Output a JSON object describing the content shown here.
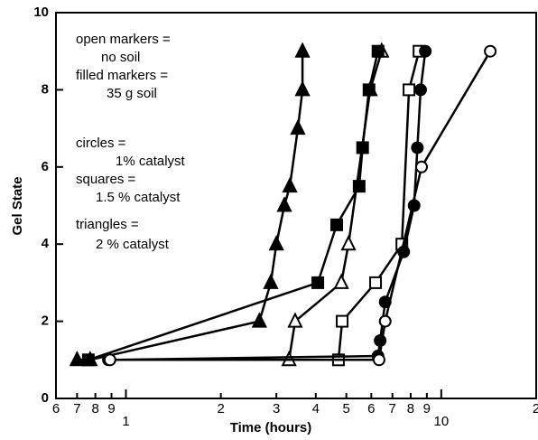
{
  "chart_data": {
    "type": "line",
    "xlabel": "Time (hours)",
    "ylabel": "Gel State",
    "xscale": "log",
    "xlim": [
      0.6,
      20
    ],
    "ylim": [
      0,
      10
    ],
    "xticks": [
      {
        "value": 0.6,
        "label": "6"
      },
      {
        "value": 0.7,
        "label": "7"
      },
      {
        "value": 0.8,
        "label": "8"
      },
      {
        "value": 0.9,
        "label": "9"
      },
      1,
      2,
      3,
      4,
      5,
      6,
      7,
      8,
      9,
      10,
      {
        "value": 20,
        "label": "2"
      }
    ],
    "yticks": [
      0,
      2,
      4,
      6,
      8,
      10
    ],
    "annotations": [
      "open markers  =",
      "no soil",
      "filled markers =",
      "35 g soil",
      "circles  =",
      "1% catalyst",
      "squares =",
      "1.5 %  catalyst",
      "triangles =",
      "2 % catalyst"
    ],
    "series": [
      {
        "marker": "triangle",
        "filled": true,
        "color": "#000000",
        "x": [
          0.7,
          0.77,
          2.65,
          2.88,
          3.0,
          3.18,
          3.31,
          3.51,
          3.63,
          3.63
        ],
        "values": [
          1,
          1,
          2,
          3,
          4,
          5,
          5.5,
          7,
          8,
          9
        ]
      },
      {
        "marker": "triangle",
        "filled": false,
        "color": "#000000",
        "x": [
          3.29,
          3.44,
          4.82,
          5.08,
          5.95,
          6.47
        ],
        "values": [
          1,
          2,
          3,
          4,
          8,
          9
        ]
      },
      {
        "marker": "square",
        "filled": true,
        "color": "#000000",
        "x": [
          0.76,
          4.06,
          4.66,
          5.49,
          5.63,
          5.9,
          6.3
        ],
        "values": [
          1,
          3,
          4.5,
          5.5,
          6.5,
          8,
          9
        ]
      },
      {
        "marker": "square",
        "filled": false,
        "color": "#000000",
        "x": [
          4.72,
          4.85,
          6.19,
          7.5,
          7.9,
          8.5
        ],
        "values": [
          1,
          2,
          3,
          4,
          8,
          9
        ]
      },
      {
        "marker": "circle",
        "filled": true,
        "color": "#000000",
        "x": [
          0.88,
          6.3,
          6.4,
          6.64,
          7.6,
          8.2,
          8.4,
          8.6,
          8.9
        ],
        "values": [
          1,
          1.1,
          1.5,
          2.5,
          3.8,
          5,
          6.5,
          8,
          9
        ]
      },
      {
        "marker": "circle",
        "filled": false,
        "color": "#000000",
        "x": [
          0.89,
          6.35,
          6.64,
          8.66,
          14.3
        ],
        "values": [
          1,
          1,
          2,
          6,
          9
        ]
      }
    ]
  }
}
